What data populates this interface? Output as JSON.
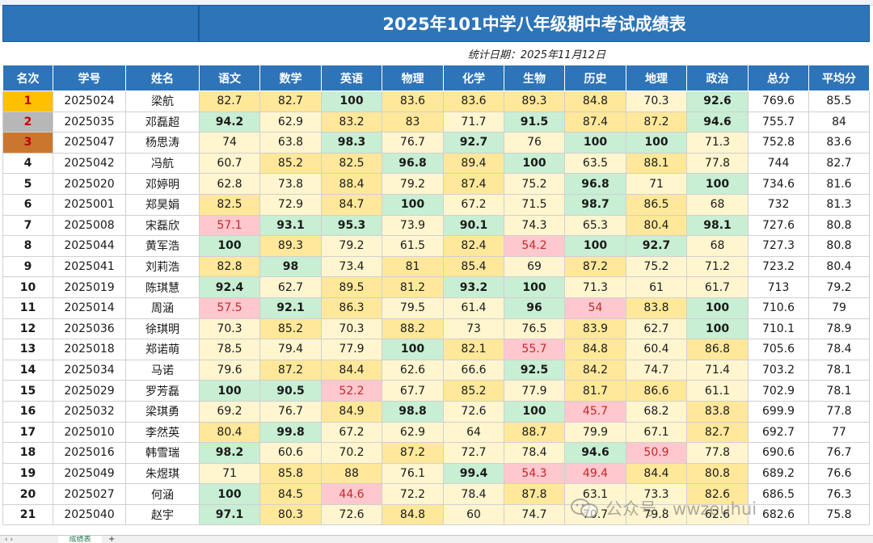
{
  "title": "2025年101中学八年级期中考试成绩表",
  "date_line": "统计日期：2025年11月12日",
  "headers": [
    "名次",
    "学号",
    "姓名",
    "语文",
    "数学",
    "英语",
    "物理",
    "化学",
    "生物",
    "历史",
    "地理",
    "政治",
    "总分",
    "平均分"
  ],
  "rows": [
    {
      "v": [
        "1",
        "2025024",
        "梁航",
        "82.7",
        "82.7",
        "100",
        "83.6",
        "83.6",
        "89.3",
        "84.8",
        "70.3",
        "92.6",
        "769.6",
        "85.5"
      ],
      "c": [
        "gold",
        "",
        "",
        "y",
        "y",
        "g",
        "y",
        "y",
        "y",
        "y",
        "ly",
        "g",
        "",
        ""
      ]
    },
    {
      "v": [
        "2",
        "2025035",
        "邓磊超",
        "94.2",
        "62.9",
        "83.2",
        "83",
        "71.7",
        "91.5",
        "87.4",
        "87.2",
        "94.6",
        "755.7",
        "84"
      ],
      "c": [
        "silver",
        "",
        "",
        "g",
        "ly",
        "y",
        "y",
        "ly",
        "g",
        "y",
        "y",
        "g",
        "",
        ""
      ]
    },
    {
      "v": [
        "3",
        "2025047",
        "杨思涛",
        "74",
        "63.8",
        "98.3",
        "76.7",
        "92.7",
        "76",
        "100",
        "100",
        "71.3",
        "752.8",
        "83.6"
      ],
      "c": [
        "bronze",
        "",
        "",
        "ly",
        "ly",
        "g",
        "ly",
        "g",
        "ly",
        "g",
        "g",
        "ly",
        "",
        ""
      ]
    },
    {
      "v": [
        "4",
        "2025042",
        "冯航",
        "60.7",
        "85.2",
        "82.5",
        "96.8",
        "89.4",
        "100",
        "63.5",
        "88.1",
        "77.8",
        "744",
        "82.7"
      ],
      "c": [
        "rank",
        "",
        "",
        "ly",
        "y",
        "y",
        "g",
        "y",
        "g",
        "ly",
        "y",
        "ly",
        "",
        ""
      ]
    },
    {
      "v": [
        "5",
        "2025020",
        "邓婷明",
        "62.8",
        "73.8",
        "88.4",
        "79.2",
        "87.4",
        "75.2",
        "96.8",
        "71",
        "100",
        "734.6",
        "81.6"
      ],
      "c": [
        "rank",
        "",
        "",
        "ly",
        "ly",
        "y",
        "ly",
        "y",
        "ly",
        "g",
        "ly",
        "g",
        "",
        ""
      ]
    },
    {
      "v": [
        "6",
        "2025001",
        "郑昊娟",
        "82.5",
        "72.9",
        "84.7",
        "100",
        "67.2",
        "71.5",
        "98.7",
        "86.5",
        "68",
        "732",
        "81.3"
      ],
      "c": [
        "rank",
        "",
        "",
        "y",
        "ly",
        "y",
        "g",
        "ly",
        "ly",
        "g",
        "y",
        "ly",
        "",
        ""
      ]
    },
    {
      "v": [
        "7",
        "2025008",
        "宋磊欣",
        "57.1",
        "93.1",
        "95.3",
        "73.9",
        "90.1",
        "74.3",
        "65.3",
        "80.4",
        "98.1",
        "727.6",
        "80.8"
      ],
      "c": [
        "rank",
        "",
        "",
        "p",
        "g",
        "g",
        "ly",
        "g",
        "ly",
        "ly",
        "y",
        "g",
        "",
        ""
      ]
    },
    {
      "v": [
        "8",
        "2025044",
        "黄军浩",
        "100",
        "89.3",
        "79.2",
        "61.5",
        "82.4",
        "54.2",
        "100",
        "92.7",
        "68",
        "727.3",
        "80.8"
      ],
      "c": [
        "rank",
        "",
        "",
        "g",
        "y",
        "ly",
        "ly",
        "y",
        "p",
        "g",
        "g",
        "ly",
        "",
        ""
      ]
    },
    {
      "v": [
        "9",
        "2025041",
        "刘莉浩",
        "82.8",
        "98",
        "73.4",
        "81",
        "85.4",
        "69",
        "87.2",
        "75.2",
        "71.2",
        "723.2",
        "80.4"
      ],
      "c": [
        "rank",
        "",
        "",
        "y",
        "g",
        "ly",
        "y",
        "y",
        "ly",
        "y",
        "ly",
        "ly",
        "",
        ""
      ]
    },
    {
      "v": [
        "10",
        "2025019",
        "陈琪慧",
        "92.4",
        "62.7",
        "89.5",
        "81.2",
        "93.2",
        "100",
        "71.3",
        "61",
        "61.7",
        "713",
        "79.2"
      ],
      "c": [
        "rank",
        "",
        "",
        "g",
        "ly",
        "y",
        "y",
        "g",
        "g",
        "ly",
        "ly",
        "ly",
        "",
        ""
      ]
    },
    {
      "v": [
        "11",
        "2025014",
        "周涵",
        "57.5",
        "92.1",
        "86.3",
        "79.5",
        "61.4",
        "96",
        "54",
        "83.8",
        "100",
        "710.6",
        "79"
      ],
      "c": [
        "rank",
        "",
        "",
        "p",
        "g",
        "y",
        "ly",
        "ly",
        "g",
        "p",
        "y",
        "g",
        "",
        ""
      ]
    },
    {
      "v": [
        "12",
        "2025036",
        "徐琪明",
        "70.3",
        "85.2",
        "70.3",
        "88.2",
        "73",
        "76.5",
        "83.9",
        "62.7",
        "100",
        "710.1",
        "78.9"
      ],
      "c": [
        "rank",
        "",
        "",
        "ly",
        "y",
        "ly",
        "y",
        "ly",
        "ly",
        "y",
        "ly",
        "g",
        "",
        ""
      ]
    },
    {
      "v": [
        "13",
        "2025018",
        "郑诺萌",
        "78.5",
        "79.4",
        "77.9",
        "100",
        "82.1",
        "55.7",
        "84.8",
        "60.4",
        "86.8",
        "705.6",
        "78.4"
      ],
      "c": [
        "rank",
        "",
        "",
        "ly",
        "ly",
        "ly",
        "g",
        "y",
        "p",
        "y",
        "ly",
        "y",
        "",
        ""
      ]
    },
    {
      "v": [
        "14",
        "2025034",
        "马诺",
        "79.6",
        "87.2",
        "84.4",
        "62.6",
        "66.6",
        "92.5",
        "84.2",
        "74.7",
        "71.4",
        "703.2",
        "78.1"
      ],
      "c": [
        "rank",
        "",
        "",
        "ly",
        "y",
        "y",
        "ly",
        "ly",
        "g",
        "y",
        "ly",
        "ly",
        "",
        ""
      ]
    },
    {
      "v": [
        "15",
        "2025029",
        "罗芳磊",
        "100",
        "90.5",
        "52.2",
        "67.7",
        "85.2",
        "77.9",
        "81.7",
        "86.6",
        "61.1",
        "702.9",
        "78.1"
      ],
      "c": [
        "rank",
        "",
        "",
        "g",
        "g",
        "p",
        "ly",
        "y",
        "ly",
        "y",
        "y",
        "ly",
        "",
        ""
      ]
    },
    {
      "v": [
        "16",
        "2025032",
        "梁琪勇",
        "69.2",
        "76.7",
        "84.9",
        "98.8",
        "72.6",
        "100",
        "45.7",
        "68.2",
        "83.8",
        "699.9",
        "77.8"
      ],
      "c": [
        "rank",
        "",
        "",
        "ly",
        "ly",
        "y",
        "g",
        "ly",
        "g",
        "p",
        "ly",
        "y",
        "",
        ""
      ]
    },
    {
      "v": [
        "17",
        "2025010",
        "李然英",
        "80.4",
        "99.8",
        "67.2",
        "62.9",
        "64",
        "88.7",
        "79.9",
        "67.1",
        "82.7",
        "692.7",
        "77"
      ],
      "c": [
        "rank",
        "",
        "",
        "y",
        "g",
        "ly",
        "ly",
        "ly",
        "y",
        "ly",
        "ly",
        "y",
        "",
        ""
      ]
    },
    {
      "v": [
        "18",
        "2025016",
        "韩雪瑞",
        "98.2",
        "60.6",
        "70.2",
        "87.2",
        "72.7",
        "78.4",
        "94.6",
        "50.9",
        "77.8",
        "690.6",
        "76.7"
      ],
      "c": [
        "rank",
        "",
        "",
        "g",
        "ly",
        "ly",
        "y",
        "ly",
        "ly",
        "g",
        "p",
        "ly",
        "",
        ""
      ]
    },
    {
      "v": [
        "19",
        "2025049",
        "朱煜琪",
        "71",
        "85.8",
        "88",
        "76.1",
        "99.4",
        "54.3",
        "49.4",
        "84.4",
        "80.8",
        "689.2",
        "76.6"
      ],
      "c": [
        "rank",
        "",
        "",
        "ly",
        "y",
        "y",
        "ly",
        "g",
        "p",
        "p",
        "y",
        "y",
        "",
        ""
      ]
    },
    {
      "v": [
        "20",
        "2025027",
        "何涵",
        "100",
        "84.5",
        "44.6",
        "72.2",
        "78.4",
        "87.8",
        "63.1",
        "73.3",
        "82.6",
        "686.5",
        "76.3"
      ],
      "c": [
        "rank",
        "",
        "",
        "g",
        "y",
        "p",
        "ly",
        "ly",
        "y",
        "ly",
        "ly",
        "y",
        "",
        ""
      ]
    },
    {
      "v": [
        "21",
        "2025040",
        "赵宇",
        "97.1",
        "80.3",
        "72.6",
        "84.8",
        "60",
        "74.7",
        "70.7",
        "79.8",
        "62.6",
        "682.6",
        "75.8"
      ],
      "c": [
        "rank",
        "",
        "",
        "g",
        "y",
        "ly",
        "y",
        "ly",
        "ly",
        "ly",
        "ly",
        "ly",
        "",
        ""
      ]
    }
  ],
  "sheet_tab": "成绩表",
  "add_tab": "+",
  "nav_arrows": "‹ ›",
  "watermark": "公众号 · wwzeuhui",
  "colors": {
    "header_blue": "#2e74b8",
    "green": "#c8eed3",
    "yellow": "#ffe89a",
    "light_yellow": "#fff5cf",
    "pink": "#ffc7ce",
    "gold": "#ffc000",
    "silver": "#b7b7b7",
    "bronze": "#c9772e"
  }
}
